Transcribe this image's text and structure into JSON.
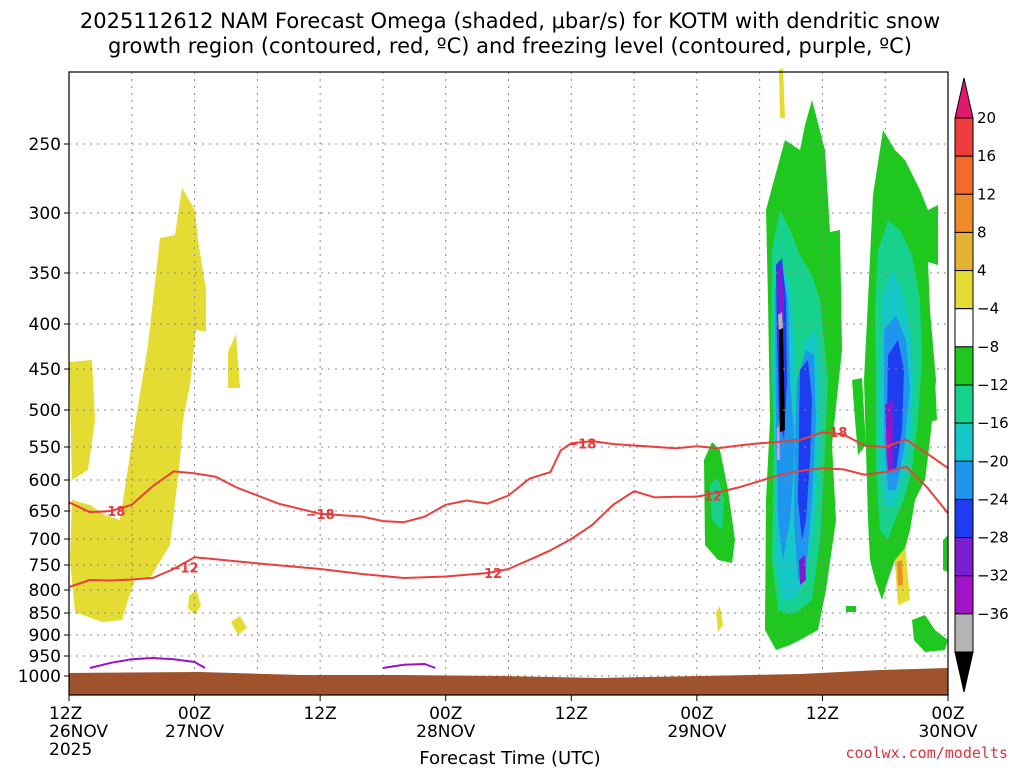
{
  "chart_data": {
    "type": "heatmap",
    "title_line1": "2025112612 NAM Forecast Omega (shaded, μbar/s) for KOTM with dendritic snow",
    "title_line2": "growth region (contoured, red, ºC) and freezing level (contoured, purple, ºC)",
    "xlabel": "Forecast Time (UTC)",
    "ylabel": "",
    "credit": "coolwx.com/modelts",
    "x_range_hours": [
      0,
      84
    ],
    "y_range_mb": [
      1050,
      200
    ],
    "y_ticks": [
      {
        "value": 250,
        "label": "250"
      },
      {
        "value": 300,
        "label": "300"
      },
      {
        "value": 350,
        "label": "350"
      },
      {
        "value": 400,
        "label": "400"
      },
      {
        "value": 450,
        "label": "450"
      },
      {
        "value": 500,
        "label": "500"
      },
      {
        "value": 550,
        "label": "550"
      },
      {
        "value": 600,
        "label": "600"
      },
      {
        "value": 650,
        "label": "650"
      },
      {
        "value": 700,
        "label": "700"
      },
      {
        "value": 750,
        "label": "750"
      },
      {
        "value": 800,
        "label": "800"
      },
      {
        "value": 850,
        "label": "850"
      },
      {
        "value": 900,
        "label": "900"
      },
      {
        "value": 950,
        "label": "950"
      },
      {
        "value": 1000,
        "label": "1000"
      }
    ],
    "x_ticks": [
      {
        "hour": 0,
        "line1": "12Z",
        "line2": "26NOV",
        "line3": "2025"
      },
      {
        "hour": 12,
        "line1": "00Z",
        "line2": "27NOV",
        "line3": ""
      },
      {
        "hour": 24,
        "line1": "12Z",
        "line2": "",
        "line3": ""
      },
      {
        "hour": 36,
        "line1": "00Z",
        "line2": "28NOV",
        "line3": ""
      },
      {
        "hour": 48,
        "line1": "12Z",
        "line2": "",
        "line3": ""
      },
      {
        "hour": 60,
        "line1": "00Z",
        "line2": "29NOV",
        "line3": ""
      },
      {
        "hour": 72,
        "line1": "12Z",
        "line2": "",
        "line3": ""
      },
      {
        "hour": 84,
        "line1": "00Z",
        "line2": "30NOV",
        "line3": ""
      }
    ],
    "colorbar": {
      "levels": [
        "20",
        "16",
        "12",
        "8",
        "4",
        "−4",
        "−8",
        "−12",
        "−16",
        "−20",
        "−24",
        "−28",
        "−32",
        "−36"
      ],
      "colors": [
        "#e0196e",
        "#f03c3c",
        "#f46a2c",
        "#ee8c2a",
        "#e6b236",
        "#e4dc32",
        "#ffffff",
        "#1ec81e",
        "#16d28c",
        "#14c8c8",
        "#1e96f0",
        "#1e3cf0",
        "#7a1ed2",
        "#a014c8",
        "#b4b4b4",
        "#000000"
      ]
    },
    "series": [
      {
        "name": "dgz -18C",
        "color": "#e8403c",
        "label": "−18",
        "points": [
          [
            0,
            636
          ],
          [
            2,
            652
          ],
          [
            4,
            650
          ],
          [
            6,
            640
          ],
          [
            8,
            610
          ],
          [
            10,
            587
          ],
          [
            12,
            590
          ],
          [
            14,
            595
          ],
          [
            16,
            612
          ],
          [
            20,
            638
          ],
          [
            24,
            655
          ],
          [
            28,
            660
          ],
          [
            30,
            668
          ],
          [
            32,
            670
          ],
          [
            34,
            660
          ],
          [
            36,
            640
          ],
          [
            38,
            633
          ],
          [
            40,
            638
          ],
          [
            42,
            625
          ],
          [
            44,
            598
          ],
          [
            46,
            588
          ],
          [
            47,
            555
          ],
          [
            48,
            545
          ],
          [
            50,
            542
          ],
          [
            52,
            546
          ],
          [
            54,
            548
          ],
          [
            58,
            552
          ],
          [
            60,
            549
          ],
          [
            62,
            552
          ],
          [
            64,
            548
          ],
          [
            66,
            545
          ],
          [
            68,
            543
          ],
          [
            70,
            540
          ],
          [
            72,
            530
          ],
          [
            74,
            533
          ],
          [
            76,
            548
          ],
          [
            78,
            550
          ],
          [
            80,
            540
          ],
          [
            82,
            560
          ],
          [
            84,
            582
          ]
        ],
        "labels": [
          [
            4,
            650
          ],
          [
            24,
            655
          ],
          [
            49,
            545
          ],
          [
            73,
            530
          ]
        ]
      },
      {
        "name": "dgz -12C",
        "color": "#e8403c",
        "label": "−12",
        "points": [
          [
            0,
            794
          ],
          [
            2,
            780
          ],
          [
            4,
            781
          ],
          [
            6,
            779
          ],
          [
            8,
            776
          ],
          [
            10,
            758
          ],
          [
            12,
            735
          ],
          [
            14,
            739
          ],
          [
            18,
            747
          ],
          [
            24,
            758
          ],
          [
            28,
            768
          ],
          [
            32,
            776
          ],
          [
            36,
            773
          ],
          [
            40,
            766
          ],
          [
            42,
            758
          ],
          [
            44,
            740
          ],
          [
            46,
            722
          ],
          [
            48,
            700
          ],
          [
            50,
            675
          ],
          [
            52,
            640
          ],
          [
            54,
            618
          ],
          [
            56,
            628
          ],
          [
            58,
            627
          ],
          [
            60,
            627
          ],
          [
            62,
            620
          ],
          [
            64,
            612
          ],
          [
            68,
            592
          ],
          [
            70,
            586
          ],
          [
            72,
            582
          ],
          [
            74,
            584
          ],
          [
            76,
            592
          ],
          [
            78,
            588
          ],
          [
            80,
            580
          ],
          [
            82,
            612
          ],
          [
            84,
            654
          ]
        ],
        "labels": [
          [
            11,
            755
          ],
          [
            40,
            766
          ],
          [
            61,
            625
          ]
        ]
      },
      {
        "name": "freezing level 0C",
        "color": "#9a10c8",
        "label": "",
        "points": [
          [
            0,
            960
          ],
          [
            0.6,
            980
          ]
        ],
        "segments": [
          [
            [
              2,
              980
            ],
            [
              4,
              967
            ],
            [
              6,
              958
            ],
            [
              8,
              955
            ],
            [
              10,
              958
            ],
            [
              12,
              965
            ],
            [
              13,
              980
            ]
          ],
          [
            [
              30,
              980
            ],
            [
              32,
              972
            ],
            [
              34,
              970
            ],
            [
              35,
              980
            ]
          ]
        ]
      }
    ]
  }
}
